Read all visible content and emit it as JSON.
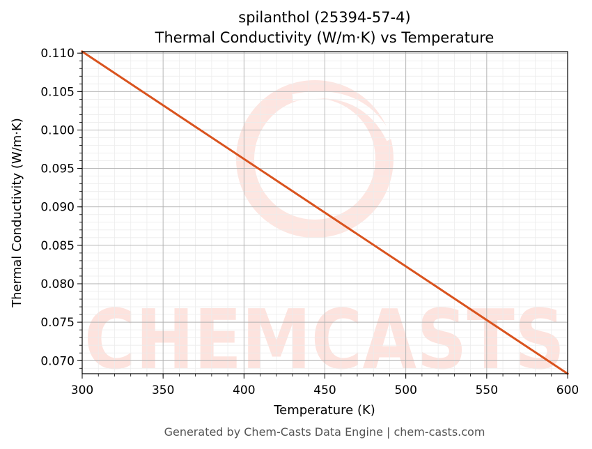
{
  "chart_data": {
    "type": "line",
    "title_line1": "spilanthol (25394-57-4)",
    "title_line2": "Thermal Conductivity (W/m·K) vs Temperature",
    "xlabel": "Temperature (K)",
    "ylabel": "Thermal Conductivity (W/m·K)",
    "xlim": [
      300,
      600
    ],
    "ylim": [
      0.0683,
      0.1102
    ],
    "x_ticks": [
      300,
      350,
      400,
      450,
      500,
      550,
      600
    ],
    "y_ticks": [
      0.07,
      0.075,
      0.08,
      0.085,
      0.09,
      0.095,
      0.1,
      0.105,
      0.11
    ],
    "y_tick_labels": [
      "0.070",
      "0.075",
      "0.080",
      "0.085",
      "0.090",
      "0.095",
      "0.100",
      "0.105",
      "0.110"
    ],
    "grid": true,
    "series": [
      {
        "x": [
          300,
          600
        ],
        "y": [
          0.1102,
          0.0683
        ],
        "color": "#d9531e"
      }
    ]
  },
  "watermark": {
    "text": "CHEMCASTS",
    "color": "#fde3de"
  },
  "footer": "Generated by Chem-Casts Data Engine | chem-casts.com"
}
